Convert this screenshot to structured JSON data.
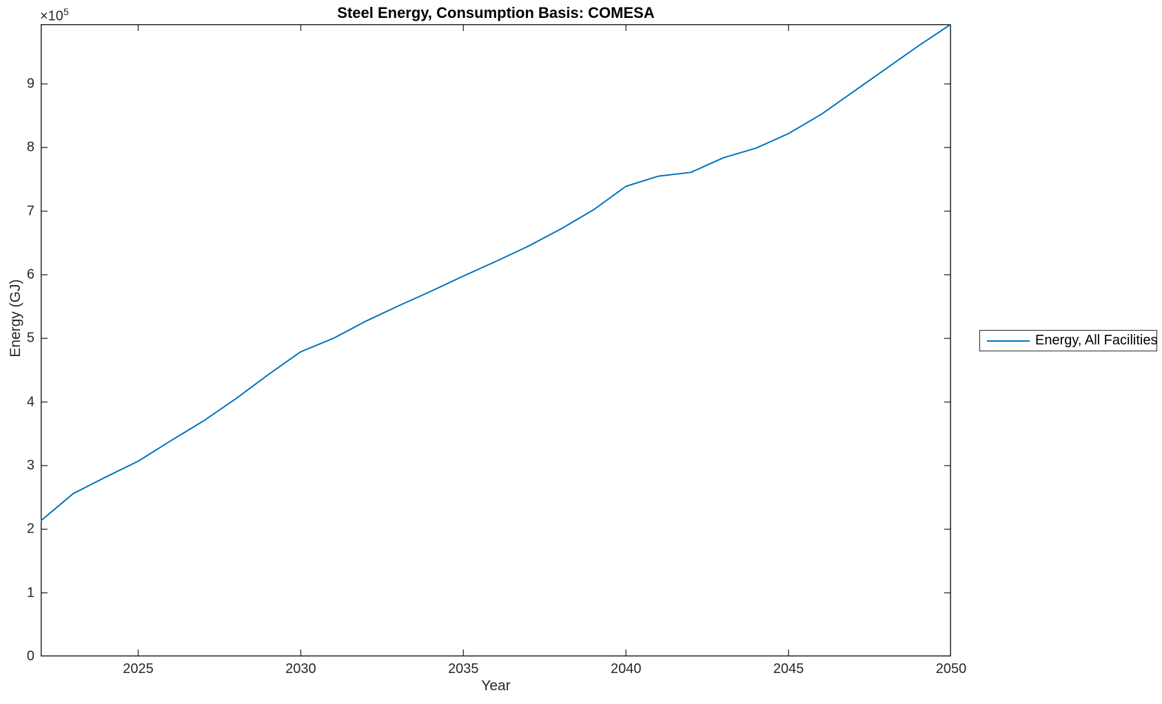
{
  "colors": {
    "line": "#0072BD",
    "axis": "#262626",
    "background": "#ffffff",
    "title_text": "#000000"
  },
  "axes": {
    "xlabel": "Year",
    "ylabel": "Energy (GJ)",
    "y_mult_base": "×10",
    "y_mult_exp": "5",
    "xticks": [
      2025,
      2030,
      2035,
      2040,
      2045,
      2050
    ],
    "ytick_values": [
      0,
      100000,
      200000,
      300000,
      400000,
      500000,
      600000,
      700000,
      800000,
      900000
    ],
    "ytick_labels": [
      "0",
      "1",
      "2",
      "3",
      "4",
      "5",
      "6",
      "7",
      "8",
      "9"
    ],
    "xlim": [
      2022,
      2050
    ],
    "ylim": [
      0,
      994000
    ]
  },
  "legend": {
    "label": "Energy, All Facilities"
  },
  "chart_data": {
    "type": "line",
    "title": "Steel Energy, Consumption Basis: COMESA",
    "xlabel": "Year",
    "ylabel": "Energy (GJ)",
    "legend_position": "right-outside",
    "grid": false,
    "xlim": [
      2022,
      2050
    ],
    "ylim": [
      0,
      994000
    ],
    "series": [
      {
        "name": "Energy, All Facilities",
        "color": "#0072BD",
        "x": [
          2022,
          2023,
          2024,
          2025,
          2026,
          2027,
          2028,
          2029,
          2030,
          2031,
          2032,
          2033,
          2034,
          2035,
          2036,
          2037,
          2038,
          2039,
          2040,
          2041,
          2042,
          2043,
          2044,
          2045,
          2046,
          2047,
          2048,
          2049,
          2050
        ],
        "values": [
          213000,
          256000,
          282000,
          307000,
          339000,
          370000,
          405000,
          443000,
          479000,
          500000,
          527000,
          551000,
          574000,
          598000,
          621000,
          645000,
          672000,
          702000,
          739000,
          755000,
          761000,
          784000,
          799000,
          822000,
          852000,
          888000,
          924000,
          960000,
          994000
        ]
      }
    ]
  }
}
